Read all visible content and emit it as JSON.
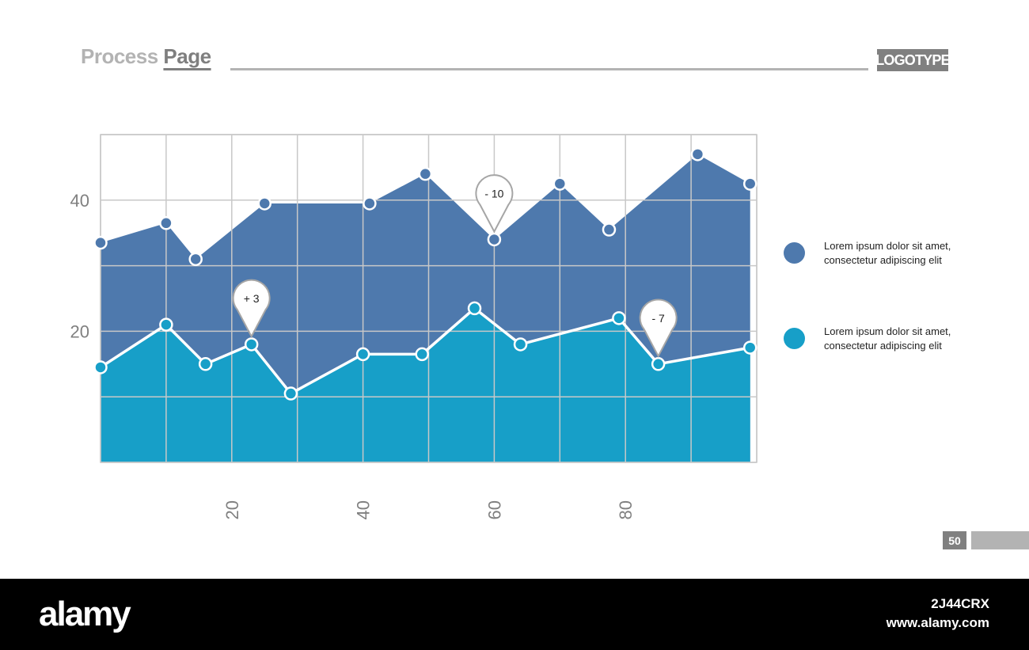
{
  "header": {
    "title_light": "Process",
    "title_dark": "Page",
    "logo": "LOGOTYPE"
  },
  "chart_data": {
    "type": "area",
    "x": [
      0,
      10,
      14.5,
      25,
      41,
      49.5,
      60,
      70,
      77.5,
      91,
      99
    ],
    "series": [
      {
        "x": [
          0,
          10,
          14.5,
          25,
          41,
          49.5,
          60,
          70,
          77.5,
          91,
          99
        ],
        "values": [
          33.5,
          36.5,
          31,
          39.5,
          39.5,
          44,
          34,
          42.5,
          35.5,
          47,
          42.5
        ],
        "color": "#4e79ad"
      },
      {
        "x": [
          0,
          10,
          16,
          23,
          29,
          40,
          49,
          57,
          64,
          79,
          85,
          99
        ],
        "values": [
          14.5,
          21,
          15,
          18,
          10.5,
          16.5,
          16.5,
          23.5,
          18,
          22,
          15,
          17.5
        ],
        "color": "#179fc8"
      }
    ],
    "xlim": [
      0,
      100
    ],
    "ylim": [
      0,
      50
    ],
    "x_ticks": [
      20,
      40,
      60,
      80
    ],
    "x_tick_labels": [
      "20",
      "40",
      "60",
      "80"
    ],
    "y_ticks": [
      20,
      40
    ],
    "y_tick_labels": [
      "20",
      "40"
    ],
    "grid": true,
    "title": "",
    "xlabel": "",
    "ylabel": "",
    "legend_position": "right",
    "annotations": [
      {
        "x": 60,
        "y": 34,
        "text": "- 10",
        "series": 0
      },
      {
        "x": 23,
        "y": 18,
        "text": "+ 3",
        "series": 1
      },
      {
        "x": 85,
        "y": 15,
        "text": "- 7",
        "series": 1
      }
    ]
  },
  "legend": {
    "items": [
      {
        "text_line1": "Lorem ipsum dolor sit amet,",
        "text_line2": "consectetur adipiscing elit",
        "color": "#4e79ad"
      },
      {
        "text_line1": "Lorem ipsum dolor sit amet,",
        "text_line2": "consectetur adipiscing elit",
        "color": "#179fc8"
      }
    ]
  },
  "footer": {
    "page_number": "50"
  },
  "watermark": {
    "brand": "alamy",
    "image_id": "2J44CRX",
    "url": "www.alamy.com"
  }
}
